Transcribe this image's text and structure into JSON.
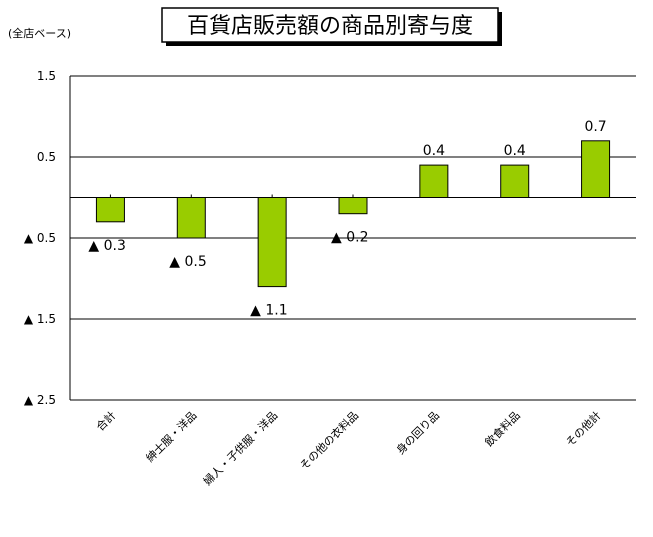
{
  "unit_label": "(全店ベース)",
  "chart_data": {
    "type": "bar",
    "title": "百貨店販売額の商品別寄与度",
    "ylim": [
      -2.5,
      1.5
    ],
    "yticks": [
      {
        "value": 1.5,
        "label": "1.5"
      },
      {
        "value": 0.5,
        "label": "0.5"
      },
      {
        "value": -0.5,
        "label": "▲ 0.5"
      },
      {
        "value": -1.5,
        "label": "▲ 1.5"
      },
      {
        "value": -2.5,
        "label": "▲ 2.5"
      }
    ],
    "categories": [
      "合計",
      "紳士服・洋品",
      "婦人・子供服・洋品",
      "その他の衣料品",
      "身の回り品",
      "飲食料品",
      "その他計"
    ],
    "values": [
      -0.3,
      -0.5,
      -1.1,
      -0.2,
      0.4,
      0.4,
      0.7
    ],
    "data_labels": [
      "▲ 0.3",
      "▲ 0.5",
      "▲ 1.1",
      "▲ 0.2",
      "0.4",
      "0.4",
      "0.7"
    ],
    "bar_color": "#99cc00",
    "grid": true,
    "legend": "none"
  }
}
